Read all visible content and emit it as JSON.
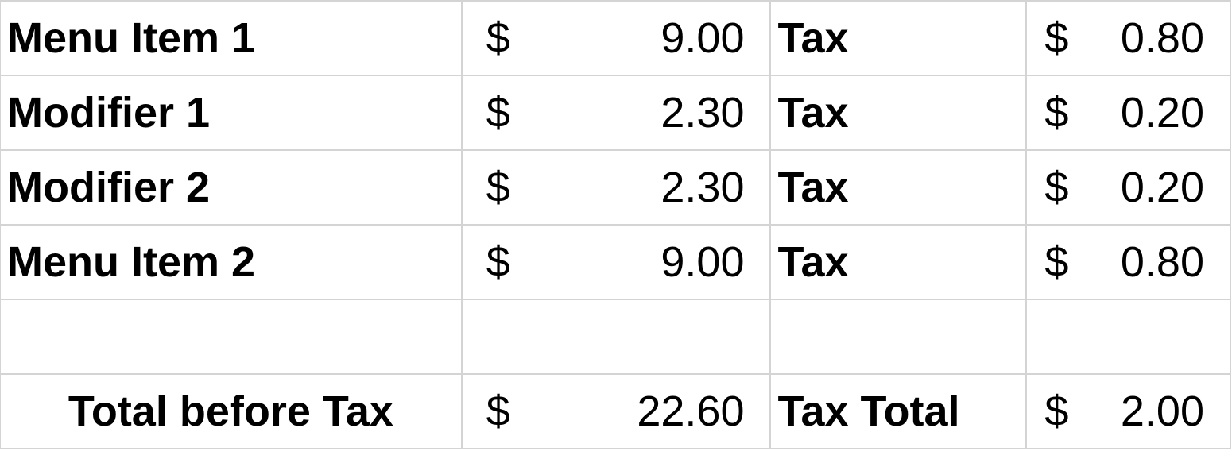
{
  "rows": [
    {
      "item": "Menu Item 1",
      "currency": "$",
      "price": "9.00",
      "tax_label": "Tax",
      "tax": "0.80"
    },
    {
      "item": "Modifier 1",
      "currency": "$",
      "price": "2.30",
      "tax_label": "Tax",
      "tax": "0.20"
    },
    {
      "item": "Modifier 2",
      "currency": "$",
      "price": "2.30",
      "tax_label": "Tax",
      "tax": "0.20"
    },
    {
      "item": "Menu Item 2",
      "currency": "$",
      "price": "9.00",
      "tax_label": "Tax",
      "tax": "0.80"
    }
  ],
  "total": {
    "label": "Total before Tax",
    "currency": "$",
    "amount": "22.60",
    "tax_label": "Tax Total",
    "tax": "2.00"
  }
}
